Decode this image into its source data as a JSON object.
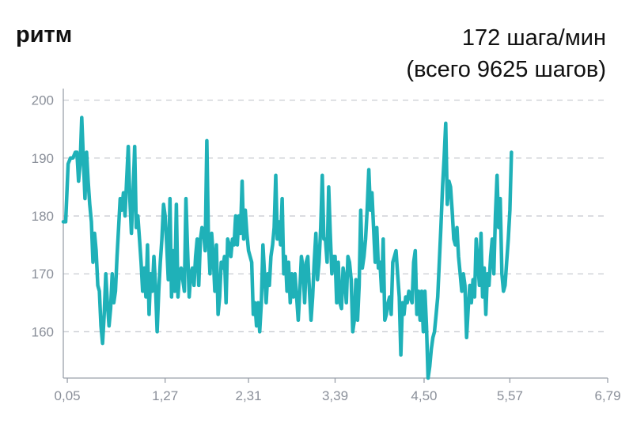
{
  "header": {
    "title": "ритм",
    "summary_line1": "172 шага/мин",
    "summary_line2": "(всего 9625 шагов)"
  },
  "colors": {
    "line": "#1fb1b8",
    "grid": "#c9ccd2",
    "axis": "#9aa0aa",
    "tick_text": "#8a8f99"
  },
  "chart_data": {
    "type": "line",
    "title": "ритм",
    "xlabel": "",
    "ylabel": "",
    "ylim": [
      152,
      202
    ],
    "xlim": [
      0,
      6.79
    ],
    "y_ticks": [
      200,
      190,
      180,
      170,
      160
    ],
    "x_ticks": [
      "0,05",
      "1,27",
      "2,31",
      "3,39",
      "4,50",
      "5,57",
      "6,79"
    ],
    "x_tick_values": [
      0.05,
      1.27,
      2.31,
      3.39,
      4.5,
      5.57,
      6.79
    ],
    "grid": true,
    "series": [
      {
        "values": [
          [
            0.0,
            179
          ],
          [
            0.03,
            179
          ],
          [
            0.06,
            189
          ],
          [
            0.09,
            190
          ],
          [
            0.12,
            190
          ],
          [
            0.15,
            191
          ],
          [
            0.17,
            191
          ],
          [
            0.19,
            186
          ],
          [
            0.21,
            189
          ],
          [
            0.23,
            197
          ],
          [
            0.25,
            190
          ],
          [
            0.27,
            183
          ],
          [
            0.29,
            191
          ],
          [
            0.31,
            186
          ],
          [
            0.33,
            182
          ],
          [
            0.35,
            179
          ],
          [
            0.37,
            172
          ],
          [
            0.39,
            177
          ],
          [
            0.41,
            174
          ],
          [
            0.43,
            168
          ],
          [
            0.45,
            167
          ],
          [
            0.47,
            161
          ],
          [
            0.49,
            158
          ],
          [
            0.51,
            163
          ],
          [
            0.53,
            170
          ],
          [
            0.55,
            165
          ],
          [
            0.57,
            161
          ],
          [
            0.59,
            164
          ],
          [
            0.61,
            170
          ],
          [
            0.63,
            165
          ],
          [
            0.65,
            167
          ],
          [
            0.67,
            173
          ],
          [
            0.69,
            178
          ],
          [
            0.71,
            183
          ],
          [
            0.73,
            181
          ],
          [
            0.75,
            184
          ],
          [
            0.77,
            180
          ],
          [
            0.79,
            186
          ],
          [
            0.81,
            192
          ],
          [
            0.83,
            183
          ],
          [
            0.85,
            177
          ],
          [
            0.87,
            184
          ],
          [
            0.89,
            192
          ],
          [
            0.91,
            178
          ],
          [
            0.93,
            180
          ],
          [
            0.95,
            176
          ],
          [
            0.97,
            172
          ],
          [
            0.99,
            167
          ],
          [
            1.01,
            171
          ],
          [
            1.03,
            166
          ],
          [
            1.05,
            175
          ],
          [
            1.07,
            163
          ],
          [
            1.09,
            170
          ],
          [
            1.11,
            167
          ],
          [
            1.13,
            173
          ],
          [
            1.15,
            168
          ],
          [
            1.17,
            160
          ],
          [
            1.19,
            167
          ],
          [
            1.21,
            172
          ],
          [
            1.23,
            176
          ],
          [
            1.25,
            182
          ],
          [
            1.27,
            180
          ],
          [
            1.29,
            175
          ],
          [
            1.31,
            169
          ],
          [
            1.33,
            183
          ],
          [
            1.35,
            166
          ],
          [
            1.37,
            174
          ],
          [
            1.39,
            167
          ],
          [
            1.41,
            182
          ],
          [
            1.43,
            166
          ],
          [
            1.45,
            170
          ],
          [
            1.47,
            171
          ],
          [
            1.49,
            169
          ],
          [
            1.51,
            167
          ],
          [
            1.53,
            183
          ],
          [
            1.55,
            174
          ],
          [
            1.57,
            166
          ],
          [
            1.59,
            170
          ],
          [
            1.61,
            171
          ],
          [
            1.63,
            168
          ],
          [
            1.65,
            173
          ],
          [
            1.67,
            176
          ],
          [
            1.69,
            168
          ],
          [
            1.71,
            176
          ],
          [
            1.73,
            178
          ],
          [
            1.75,
            177
          ],
          [
            1.77,
            174
          ],
          [
            1.79,
            193
          ],
          [
            1.81,
            176
          ],
          [
            1.83,
            170
          ],
          [
            1.85,
            177
          ],
          [
            1.87,
            173
          ],
          [
            1.89,
            167
          ],
          [
            1.91,
            175
          ],
          [
            1.93,
            163
          ],
          [
            1.95,
            166
          ],
          [
            1.97,
            172
          ],
          [
            1.99,
            171
          ],
          [
            2.01,
            173
          ],
          [
            2.03,
            165
          ],
          [
            2.05,
            176
          ],
          [
            2.07,
            175
          ],
          [
            2.09,
            173
          ],
          [
            2.11,
            176
          ],
          [
            2.13,
            175
          ],
          [
            2.15,
            180
          ],
          [
            2.17,
            175
          ],
          [
            2.19,
            180
          ],
          [
            2.21,
            177
          ],
          [
            2.23,
            186
          ],
          [
            2.25,
            176
          ],
          [
            2.27,
            181
          ],
          [
            2.29,
            177
          ],
          [
            2.31,
            174
          ],
          [
            2.33,
            173
          ],
          [
            2.35,
            172
          ],
          [
            2.37,
            163
          ],
          [
            2.39,
            165
          ],
          [
            2.41,
            161
          ],
          [
            2.43,
            165
          ],
          [
            2.45,
            160
          ],
          [
            2.47,
            165
          ],
          [
            2.49,
            175
          ],
          [
            2.51,
            170
          ],
          [
            2.53,
            165
          ],
          [
            2.55,
            170
          ],
          [
            2.57,
            168
          ],
          [
            2.59,
            173
          ],
          [
            2.61,
            175
          ],
          [
            2.63,
            178
          ],
          [
            2.65,
            187
          ],
          [
            2.67,
            176
          ],
          [
            2.69,
            179
          ],
          [
            2.71,
            175
          ],
          [
            2.73,
            183
          ],
          [
            2.75,
            170
          ],
          [
            2.77,
            173
          ],
          [
            2.79,
            167
          ],
          [
            2.81,
            172
          ],
          [
            2.83,
            165
          ],
          [
            2.85,
            170
          ],
          [
            2.87,
            166
          ],
          [
            2.89,
            170
          ],
          [
            2.91,
            166
          ],
          [
            2.93,
            162
          ],
          [
            2.95,
            167
          ],
          [
            2.97,
            173
          ],
          [
            2.99,
            171
          ],
          [
            3.01,
            165
          ],
          [
            3.03,
            172
          ],
          [
            3.05,
            173
          ],
          [
            3.07,
            167
          ],
          [
            3.09,
            162
          ],
          [
            3.11,
            166
          ],
          [
            3.13,
            172
          ],
          [
            3.15,
            177
          ],
          [
            3.17,
            169
          ],
          [
            3.19,
            172
          ],
          [
            3.21,
            178
          ],
          [
            3.23,
            187
          ],
          [
            3.25,
            176
          ],
          [
            3.27,
            176
          ],
          [
            3.29,
            172
          ],
          [
            3.31,
            185
          ],
          [
            3.33,
            177
          ],
          [
            3.35,
            170
          ],
          [
            3.37,
            173
          ],
          [
            3.39,
            173
          ],
          [
            3.41,
            165
          ],
          [
            3.43,
            172
          ],
          [
            3.45,
            165
          ],
          [
            3.47,
            164
          ],
          [
            3.49,
            171
          ],
          [
            3.51,
            169
          ],
          [
            3.53,
            165
          ],
          [
            3.55,
            173
          ],
          [
            3.57,
            172
          ],
          [
            3.59,
            169
          ],
          [
            3.61,
            160
          ],
          [
            3.63,
            162
          ],
          [
            3.65,
            169
          ],
          [
            3.67,
            162
          ],
          [
            3.69,
            168
          ],
          [
            3.71,
            181
          ],
          [
            3.73,
            171
          ],
          [
            3.75,
            173
          ],
          [
            3.77,
            176
          ],
          [
            3.79,
            181
          ],
          [
            3.81,
            188
          ],
          [
            3.83,
            181
          ],
          [
            3.85,
            184
          ],
          [
            3.87,
            178
          ],
          [
            3.89,
            172
          ],
          [
            3.91,
            178
          ],
          [
            3.93,
            171
          ],
          [
            3.95,
            172
          ],
          [
            3.97,
            167
          ],
          [
            3.99,
            176
          ],
          [
            4.01,
            162
          ],
          [
            4.03,
            163
          ],
          [
            4.05,
            165
          ],
          [
            4.07,
            166
          ],
          [
            4.09,
            163
          ],
          [
            4.11,
            172
          ],
          [
            4.13,
            173
          ],
          [
            4.15,
            174
          ],
          [
            4.17,
            170
          ],
          [
            4.19,
            166
          ],
          [
            4.21,
            156
          ],
          [
            4.23,
            165
          ],
          [
            4.25,
            163
          ],
          [
            4.27,
            166
          ],
          [
            4.29,
            165
          ],
          [
            4.31,
            167
          ],
          [
            4.33,
            166
          ],
          [
            4.35,
            165
          ],
          [
            4.37,
            172
          ],
          [
            4.39,
            174
          ],
          [
            4.41,
            163
          ],
          [
            4.43,
            167
          ],
          [
            4.45,
            162
          ],
          [
            4.47,
            167
          ],
          [
            4.49,
            160
          ],
          [
            4.51,
            167
          ],
          [
            4.53,
            161
          ],
          [
            4.55,
            152
          ],
          [
            4.57,
            154
          ],
          [
            4.59,
            157
          ],
          [
            4.61,
            159
          ],
          [
            4.63,
            160
          ],
          [
            4.65,
            163
          ],
          [
            4.67,
            166
          ],
          [
            4.69,
            172
          ],
          [
            4.71,
            178
          ],
          [
            4.73,
            185
          ],
          [
            4.75,
            190
          ],
          [
            4.77,
            196
          ],
          [
            4.79,
            182
          ],
          [
            4.81,
            186
          ],
          [
            4.83,
            185
          ],
          [
            4.85,
            181
          ],
          [
            4.87,
            176
          ],
          [
            4.89,
            175
          ],
          [
            4.91,
            178
          ],
          [
            4.93,
            173
          ],
          [
            4.95,
            170
          ],
          [
            4.97,
            167
          ],
          [
            4.99,
            170
          ],
          [
            5.01,
            168
          ],
          [
            5.03,
            159
          ],
          [
            5.05,
            164
          ],
          [
            5.07,
            168
          ],
          [
            5.09,
            165
          ],
          [
            5.11,
            169
          ],
          [
            5.13,
            166
          ],
          [
            5.15,
            176
          ],
          [
            5.17,
            172
          ],
          [
            5.19,
            168
          ],
          [
            5.21,
            177
          ],
          [
            5.23,
            166
          ],
          [
            5.25,
            171
          ],
          [
            5.27,
            163
          ],
          [
            5.29,
            170
          ],
          [
            5.31,
            168
          ],
          [
            5.33,
            173
          ],
          [
            5.35,
            176
          ],
          [
            5.37,
            170
          ],
          [
            5.39,
            180
          ],
          [
            5.41,
            187
          ],
          [
            5.43,
            178
          ],
          [
            5.45,
            183
          ],
          [
            5.47,
            170
          ],
          [
            5.49,
            167
          ],
          [
            5.51,
            168
          ],
          [
            5.53,
            172
          ],
          [
            5.55,
            176
          ],
          [
            5.57,
            181
          ],
          [
            5.59,
            191
          ]
        ]
      }
    ]
  }
}
